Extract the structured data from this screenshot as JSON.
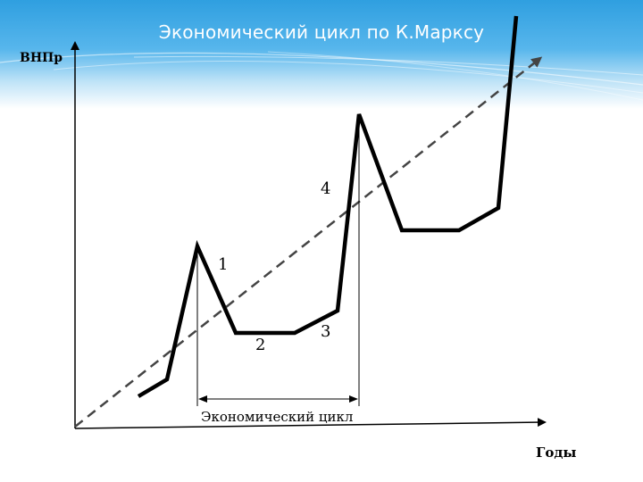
{
  "header": {
    "title": "Экономический цикл по К.Марксу"
  },
  "axes": {
    "y_label": "ВНПр",
    "x_label": "Годы"
  },
  "markers": [
    "1",
    "2",
    "3",
    "4"
  ],
  "cycle_label": "Экономический цикл",
  "colors": {
    "banner_top": "#2f9fe0",
    "banner_bottom": "#bfe3f7",
    "title_text": "#ffffff",
    "lines": "#000000",
    "dashed_line": "#444444"
  }
}
